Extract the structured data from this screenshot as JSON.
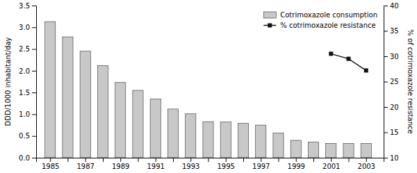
{
  "chart_data": {
    "type": "bar",
    "ylabel": "DDD/1000 inhabitant/day",
    "y2label": "% of cotrimoxazole resistance",
    "series": [
      {
        "name": "Cotrimoxazole consumption",
        "type": "bar",
        "color": "#c8c8c8",
        "x": [
          1985,
          1986,
          1987,
          1988,
          1989,
          1990,
          1991,
          1992,
          1993,
          1994,
          1995,
          1996,
          1997,
          1998,
          1999,
          2000,
          2001,
          2002,
          2003
        ],
        "values": [
          3.13,
          2.78,
          2.45,
          2.12,
          1.73,
          1.55,
          1.35,
          1.12,
          1.01,
          0.83,
          0.82,
          0.79,
          0.75,
          0.57,
          0.4,
          0.36,
          0.33,
          0.33,
          0.33
        ]
      },
      {
        "name": "% cotrimoxazole resistance",
        "type": "line",
        "axis": "y2",
        "color": "#111111",
        "marker": "square",
        "x": [
          2001,
          2002,
          2003
        ],
        "values": [
          30.5,
          29.5,
          27.2
        ]
      }
    ],
    "xlim": [
      1984.2,
      2004.0
    ],
    "xticks": [
      1985,
      {
        "value": 1986,
        "label": null
      },
      1987,
      {
        "value": 1988,
        "label": null
      },
      1989,
      {
        "value": 1990,
        "label": null
      },
      1991,
      {
        "value": 1992,
        "label": null
      },
      1993,
      {
        "value": 1994,
        "label": null
      },
      1995,
      {
        "value": 1996,
        "label": null
      },
      1997,
      {
        "value": 1998,
        "label": null
      },
      1999,
      {
        "value": 2000,
        "label": null
      },
      2001,
      {
        "value": 2002,
        "label": null
      },
      2003
    ],
    "ylim": [
      0,
      3.5
    ],
    "yticks": [
      {
        "value": 0,
        "label": "0.0"
      },
      0.5,
      {
        "value": 1.0,
        "label": "1.0"
      },
      1.5,
      {
        "value": 2.0,
        "label": "2.0"
      },
      2.5,
      {
        "value": 3.0,
        "label": "3.0"
      },
      3.5
    ],
    "y2lim": [
      10,
      40
    ],
    "y2ticks": [
      10,
      15,
      20,
      25,
      30,
      35,
      40
    ],
    "grid": false,
    "legend": "upper right"
  }
}
